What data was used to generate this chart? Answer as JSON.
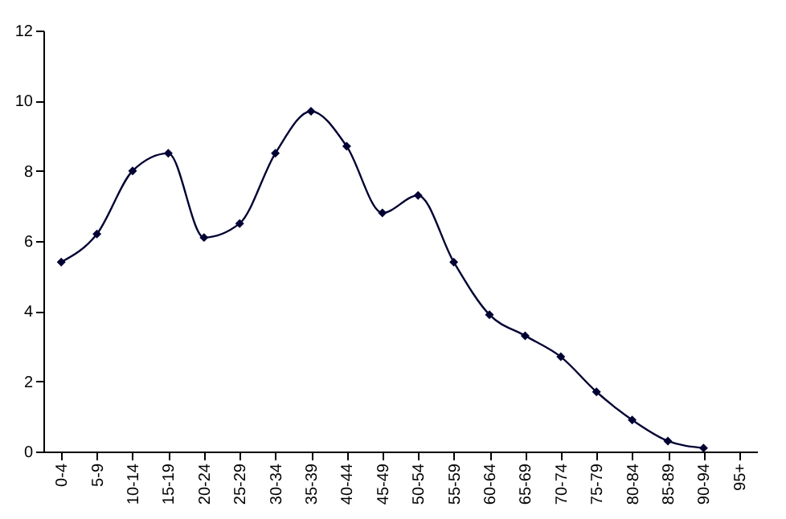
{
  "chart_data": {
    "type": "line",
    "categories": [
      "0-4",
      "5-9",
      "10-14",
      "15-19",
      "20-24",
      "25-29",
      "30-34",
      "35-39",
      "40-44",
      "45-49",
      "50-54",
      "55-59",
      "60-64",
      "65-69",
      "70-74",
      "75-79",
      "80-84",
      "85-89",
      "90-94",
      "95+"
    ],
    "series": [
      {
        "color": "#000033",
        "values": [
          5.4,
          6.2,
          8.0,
          8.5,
          6.1,
          6.5,
          8.5,
          9.7,
          8.7,
          6.8,
          7.3,
          5.4,
          3.9,
          3.3,
          2.7,
          1.7,
          0.9,
          0.3,
          0.1,
          null
        ]
      }
    ],
    "ylim": [
      0,
      12
    ],
    "yticks": [
      0,
      2,
      4,
      6,
      8,
      10,
      12
    ],
    "grid": false,
    "legend": false,
    "marker": "diamond",
    "line_style": "solid"
  }
}
